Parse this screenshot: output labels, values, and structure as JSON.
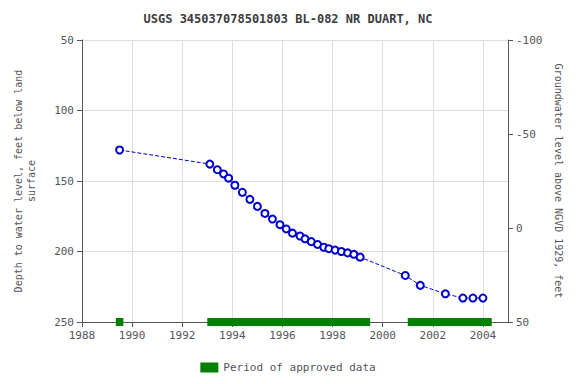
{
  "chart_data": {
    "type": "line",
    "title": "USGS 345037078501803 BL-082 NR DUART, NC",
    "ylabel": "Depth to water level, feet below land\nsurface",
    "y2label": "Groundwater level above NGVD 1929, feet",
    "x": [
      1989.5,
      1993.1,
      1993.4,
      1993.65,
      1993.85,
      1994.1,
      1994.4,
      1994.7,
      1995.0,
      1995.3,
      1995.6,
      1995.9,
      1996.15,
      1996.4,
      1996.7,
      1996.9,
      1997.15,
      1997.4,
      1997.65,
      1997.85,
      1998.1,
      1998.35,
      1998.6,
      1998.85,
      1999.1,
      2000.9,
      2001.5,
      2002.5,
      2003.2,
      2003.6,
      2004.0
    ],
    "series": [
      {
        "color": "#0000cc",
        "marker": "circle",
        "line_style": "dashed",
        "values": [
          128,
          138,
          142,
          145,
          148,
          153,
          158,
          163,
          168,
          173,
          177,
          181,
          184,
          187,
          189,
          191,
          193,
          195,
          197,
          198,
          199,
          200,
          201,
          202,
          204,
          217,
          224,
          230,
          233,
          233,
          233
        ]
      }
    ],
    "approved_periods": {
      "name": "Period of approved data",
      "color": "#008000",
      "ranges": [
        [
          1989.35,
          1989.65
        ],
        [
          1993.0,
          1999.5
        ],
        [
          2001.0,
          2004.35
        ]
      ]
    },
    "xlim": [
      1988,
      2005.0
    ],
    "xticks": [
      1988,
      1990,
      1992,
      1994,
      1996,
      1998,
      2000,
      2002,
      2004
    ],
    "ylim": [
      250,
      50
    ],
    "yticks": [
      50,
      100,
      150,
      200,
      250
    ],
    "y2lim": [
      50,
      -100
    ],
    "y2ticks": [
      50,
      0,
      -50,
      -100
    ],
    "grid": true,
    "legend": "bottom"
  }
}
